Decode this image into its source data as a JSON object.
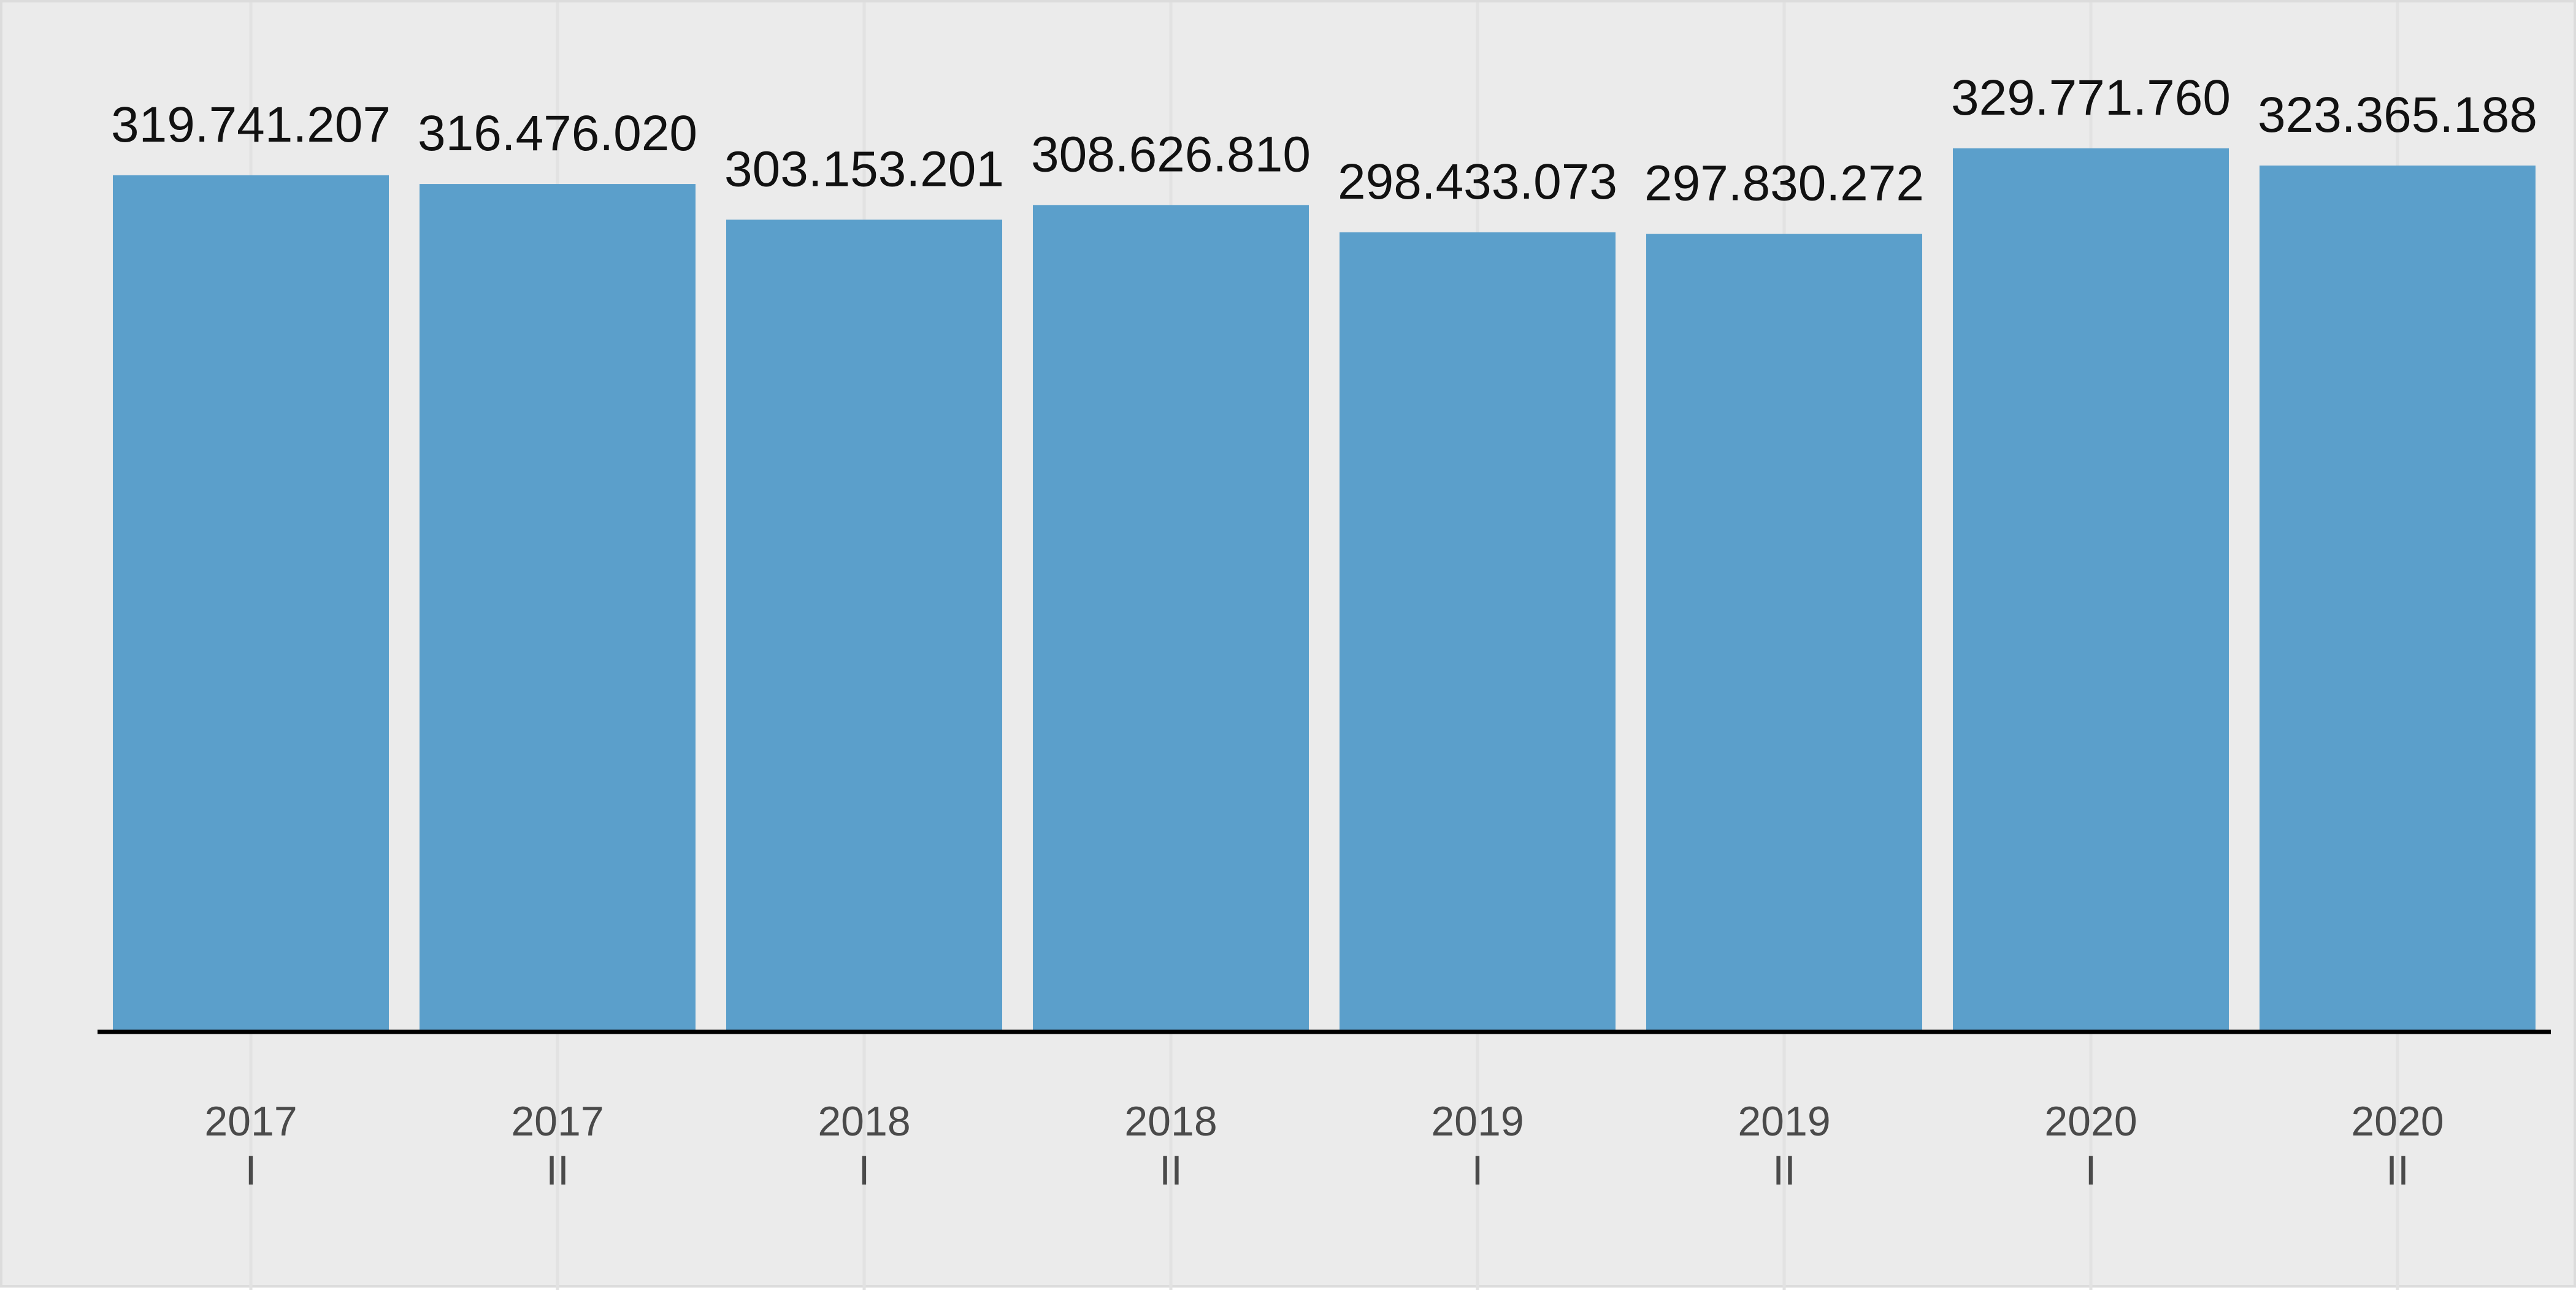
{
  "colors": {
    "background": "#ebebeb",
    "bar": "#5b9fcb",
    "gridline": "#e2e2e2",
    "baseline": "#000000",
    "value_text": "#111111",
    "tick_text": "#4a4a4a"
  },
  "chart_data": {
    "type": "bar",
    "title": "",
    "xlabel": "",
    "ylabel": "",
    "categories": [
      [
        "2017",
        "I"
      ],
      [
        "2017",
        "II"
      ],
      [
        "2018",
        "I"
      ],
      [
        "2018",
        "II"
      ],
      [
        "2019",
        "I"
      ],
      [
        "2019",
        "II"
      ],
      [
        "2020",
        "I"
      ],
      [
        "2020",
        "II"
      ]
    ],
    "values": [
      319741207,
      316476020,
      303153201,
      308626810,
      298433073,
      297830272,
      329771760,
      323365188
    ],
    "value_labels": [
      "319.741.207",
      "316.476.020",
      "303.153.201",
      "308.626.810",
      "298.433.073",
      "297.830.272",
      "329.771.760",
      "323.365.188"
    ],
    "ylim": [
      0,
      329771760
    ],
    "y_axis_visible": false,
    "grid": "vertical",
    "legend": "none"
  }
}
